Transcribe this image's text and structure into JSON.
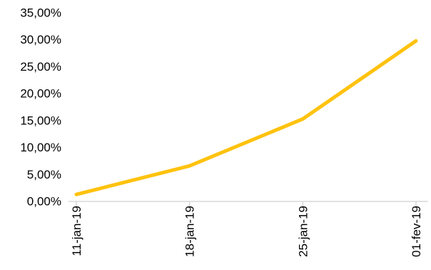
{
  "chart_data": {
    "type": "line",
    "categories": [
      "11-jan-19",
      "18-jan-19",
      "25-jan-19",
      "01-fev-19"
    ],
    "series": [
      {
        "values": [
          1.3,
          6.6,
          15.3,
          29.8
        ]
      }
    ],
    "y_ticks": [
      "0,00%",
      "5,00%",
      "10,00%",
      "15,00%",
      "20,00%",
      "25,00%",
      "30,00%",
      "35,00%"
    ],
    "ylim": [
      0,
      35
    ],
    "y_unit": "%",
    "grid": false,
    "legend": "none",
    "line_color": "#FFC20E",
    "axis_color": "#D9D9D9"
  }
}
